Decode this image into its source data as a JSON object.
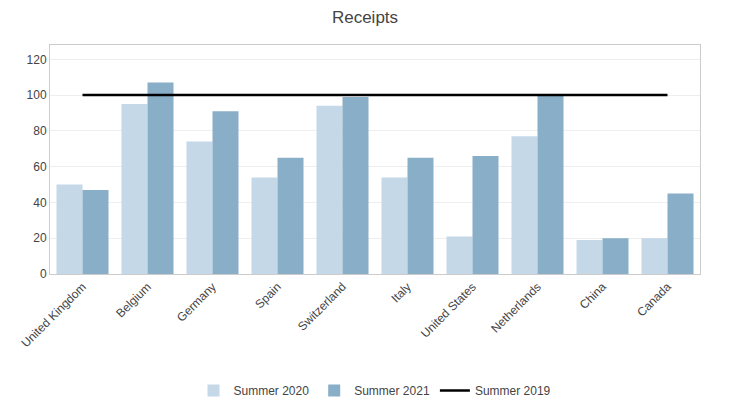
{
  "chart_data": {
    "type": "bar",
    "title": "Receipts",
    "categories": [
      "United Kingdom",
      "Belgium",
      "Germany",
      "Spain",
      "Switzerland",
      "Italy",
      "United States",
      "Netherlands",
      "China",
      "Canada"
    ],
    "series": [
      {
        "name": "Summer 2020",
        "color": "#c5d8e8",
        "values": [
          50,
          95,
          74,
          54,
          94,
          54,
          21,
          77,
          19,
          20
        ]
      },
      {
        "name": "Summer 2021",
        "color": "#89aec8",
        "values": [
          47,
          107,
          91,
          65,
          99,
          65,
          66,
          100,
          20,
          45
        ]
      },
      {
        "name": "Summer 2019",
        "type": "line",
        "color": "#000000",
        "values": [
          100,
          100,
          100,
          100,
          100,
          100,
          100,
          100,
          100,
          100
        ]
      }
    ],
    "ylim": [
      0,
      128
    ],
    "yticks": [
      0,
      20,
      40,
      60,
      80,
      100,
      120
    ],
    "grid": true,
    "legend": "bottom"
  }
}
